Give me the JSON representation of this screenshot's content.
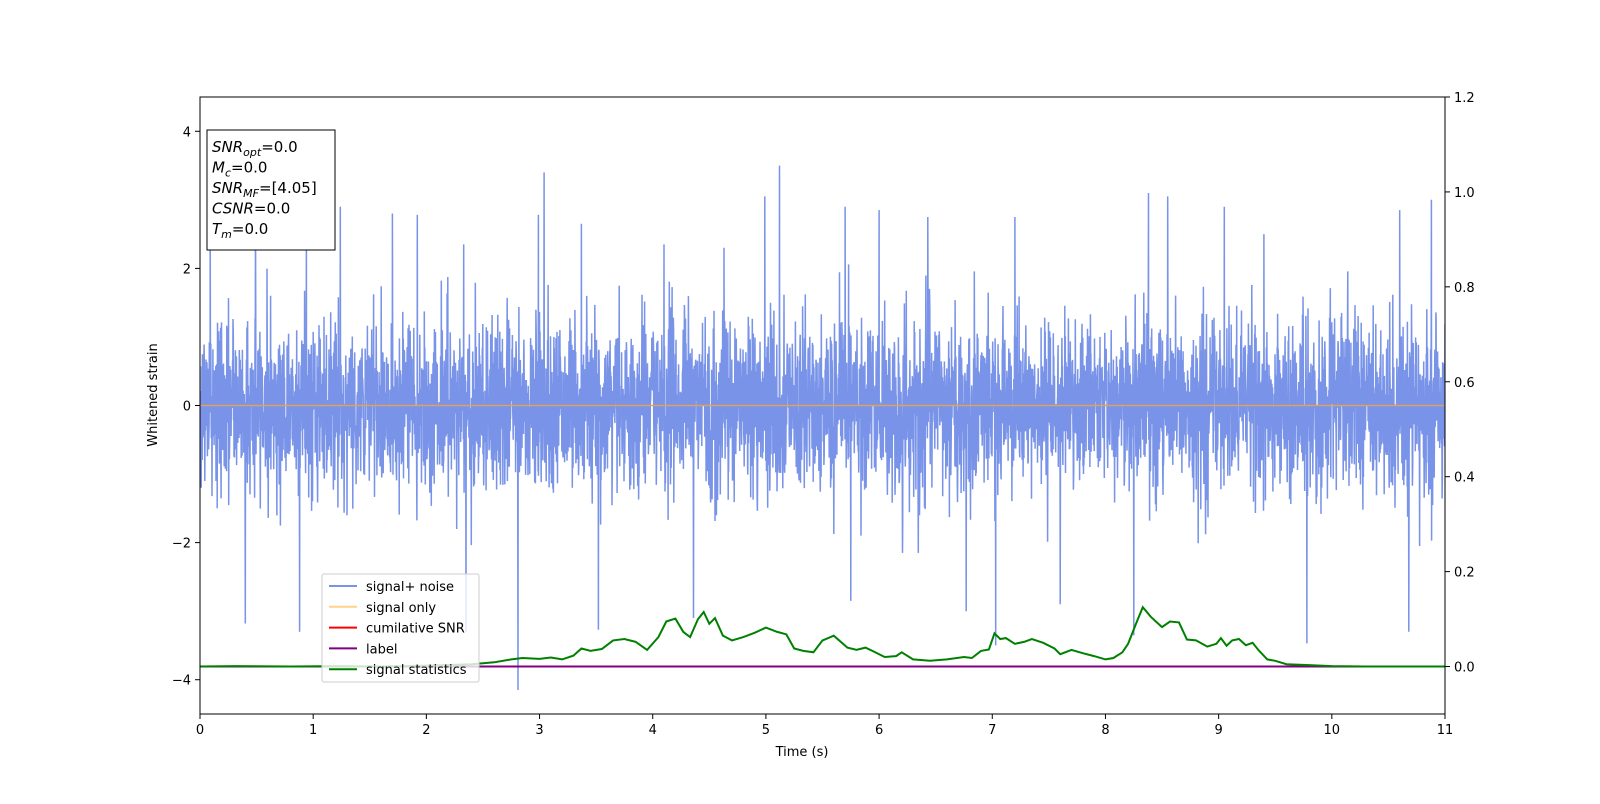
{
  "chart_data": {
    "type": "line",
    "xlabel": "Time (s)",
    "ylabel": "Whitened strain",
    "xlim": [
      0,
      11
    ],
    "ylim_left": [
      -4.5,
      4.5
    ],
    "ylim_right": [
      -0.1,
      1.2
    ],
    "x_ticks": [
      "0",
      "1",
      "2",
      "3",
      "4",
      "5",
      "6",
      "7",
      "8",
      "9",
      "10",
      "11"
    ],
    "y_left_ticks": [
      "−4",
      "−2",
      "0",
      "2",
      "4"
    ],
    "y_right_ticks": [
      "0.0",
      "0.2",
      "0.4",
      "0.6",
      "0.8",
      "1.0",
      "1.2"
    ],
    "legend": {
      "placement": "lower-left",
      "entries": [
        {
          "label": "signal+ noise",
          "color": "#7893e8"
        },
        {
          "label": "signal only",
          "color": "#ffd28a"
        },
        {
          "label": "cumilative SNR",
          "color": "#ff0000"
        },
        {
          "label": "label",
          "color": "#800080"
        },
        {
          "label": "signal statistics",
          "color": "#008000"
        }
      ]
    },
    "info_box": {
      "placement": "top-left",
      "lines": [
        {
          "name": "SNR",
          "sub": "opt",
          "value": "=0.0"
        },
        {
          "name": "M",
          "sub": "c",
          "value": "=0.0"
        },
        {
          "name": "SNR",
          "sub": "MF",
          "value": "=[4.05]"
        },
        {
          "name": "CSNR",
          "sub": "",
          "value": "=0.0"
        },
        {
          "name": "T",
          "sub": "m",
          "value": "=0.0"
        }
      ]
    },
    "series": [
      {
        "name": "signal+ noise",
        "axis": "left",
        "color": "#7893e8",
        "description": "whitened noise, roughly ±1.6 typical envelope with spikes up to about 3.5 and down to about -4.15",
        "spikes_up": [
          {
            "x": 0.09,
            "y": 2.65
          },
          {
            "x": 0.49,
            "y": 2.8
          },
          {
            "x": 0.94,
            "y": 2.55
          },
          {
            "x": 1.24,
            "y": 2.9
          },
          {
            "x": 1.7,
            "y": 2.8
          },
          {
            "x": 1.92,
            "y": 2.78
          },
          {
            "x": 2.33,
            "y": 2.35
          },
          {
            "x": 2.99,
            "y": 2.78
          },
          {
            "x": 3.04,
            "y": 3.4
          },
          {
            "x": 3.37,
            "y": 2.65
          },
          {
            "x": 4.1,
            "y": 2.35
          },
          {
            "x": 4.63,
            "y": 2.3
          },
          {
            "x": 4.99,
            "y": 3.05
          },
          {
            "x": 5.12,
            "y": 3.5
          },
          {
            "x": 5.7,
            "y": 2.9
          },
          {
            "x": 6.0,
            "y": 2.85
          },
          {
            "x": 6.43,
            "y": 2.75
          },
          {
            "x": 7.2,
            "y": 2.75
          },
          {
            "x": 8.25,
            "y": 3.1
          },
          {
            "x": 8.38,
            "y": 3.1
          },
          {
            "x": 8.55,
            "y": 3.05
          },
          {
            "x": 9.05,
            "y": 2.9
          },
          {
            "x": 9.4,
            "y": 2.5
          },
          {
            "x": 10.6,
            "y": 2.85
          },
          {
            "x": 10.88,
            "y": 3.0
          }
        ],
        "spikes_down": [
          {
            "x": 0.4,
            "y": -3.18
          },
          {
            "x": 0.88,
            "y": -3.3
          },
          {
            "x": 2.35,
            "y": -3.3
          },
          {
            "x": 2.81,
            "y": -4.15
          },
          {
            "x": 3.52,
            "y": -3.27
          },
          {
            "x": 4.36,
            "y": -3.1
          },
          {
            "x": 5.75,
            "y": -2.85
          },
          {
            "x": 6.77,
            "y": -3.0
          },
          {
            "x": 7.03,
            "y": -3.5
          },
          {
            "x": 7.6,
            "y": -2.9
          },
          {
            "x": 8.25,
            "y": -3.35
          },
          {
            "x": 9.78,
            "y": -3.47
          },
          {
            "x": 10.68,
            "y": -3.3
          }
        ]
      },
      {
        "name": "signal only",
        "axis": "left",
        "color": "#ffd28a",
        "x": [
          0,
          11
        ],
        "y": [
          0,
          0
        ]
      },
      {
        "name": "label",
        "axis": "right",
        "color": "#800080",
        "x": [
          0,
          11
        ],
        "y": [
          0,
          0
        ]
      },
      {
        "name": "signal statistics",
        "axis": "right",
        "color": "#008000",
        "x": [
          0,
          0.3,
          0.8,
          1.2,
          1.6,
          2.0,
          2.4,
          2.6,
          2.75,
          2.85,
          3.0,
          3.1,
          3.2,
          3.3,
          3.37,
          3.45,
          3.55,
          3.65,
          3.75,
          3.85,
          3.95,
          4.05,
          4.12,
          4.2,
          4.27,
          4.33,
          4.4,
          4.45,
          4.5,
          4.55,
          4.62,
          4.7,
          4.8,
          4.9,
          5.0,
          5.1,
          5.18,
          5.25,
          5.33,
          5.42,
          5.5,
          5.6,
          5.72,
          5.8,
          5.88,
          5.95,
          6.05,
          6.15,
          6.2,
          6.3,
          6.45,
          6.6,
          6.75,
          6.82,
          6.9,
          6.97,
          7.02,
          7.07,
          7.12,
          7.2,
          7.28,
          7.35,
          7.45,
          7.55,
          7.6,
          7.7,
          7.8,
          7.9,
          8.0,
          8.07,
          8.15,
          8.2,
          8.27,
          8.33,
          8.4,
          8.5,
          8.57,
          8.65,
          8.72,
          8.8,
          8.9,
          8.98,
          9.02,
          9.07,
          9.12,
          9.18,
          9.24,
          9.3,
          9.35,
          9.43,
          9.5,
          9.6,
          9.8,
          10.0,
          10.3,
          11.0
        ],
        "y": [
          0.0,
          0.001,
          0.0,
          0.001,
          0.0,
          0.002,
          0.005,
          0.009,
          0.015,
          0.018,
          0.016,
          0.019,
          0.015,
          0.023,
          0.038,
          0.033,
          0.037,
          0.055,
          0.058,
          0.052,
          0.035,
          0.062,
          0.095,
          0.101,
          0.073,
          0.062,
          0.1,
          0.115,
          0.09,
          0.102,
          0.065,
          0.055,
          0.062,
          0.071,
          0.082,
          0.073,
          0.068,
          0.038,
          0.033,
          0.03,
          0.055,
          0.065,
          0.04,
          0.035,
          0.04,
          0.032,
          0.02,
          0.022,
          0.03,
          0.015,
          0.012,
          0.015,
          0.02,
          0.018,
          0.033,
          0.036,
          0.07,
          0.058,
          0.06,
          0.048,
          0.052,
          0.058,
          0.05,
          0.038,
          0.026,
          0.035,
          0.028,
          0.022,
          0.015,
          0.018,
          0.03,
          0.048,
          0.09,
          0.125,
          0.105,
          0.083,
          0.095,
          0.093,
          0.057,
          0.055,
          0.042,
          0.048,
          0.06,
          0.044,
          0.055,
          0.058,
          0.045,
          0.05,
          0.035,
          0.015,
          0.012,
          0.005,
          0.003,
          0.001,
          0.0,
          0.0
        ]
      }
    ]
  }
}
